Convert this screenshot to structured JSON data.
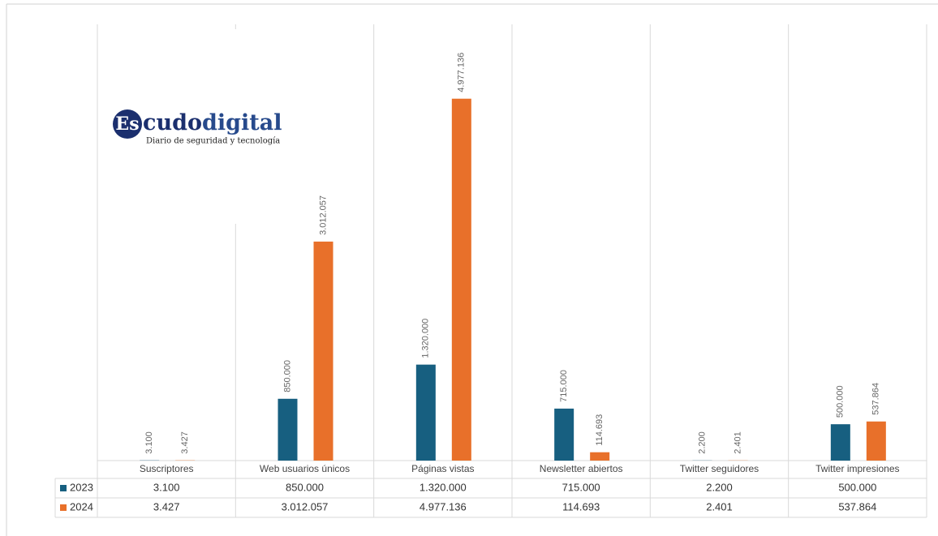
{
  "logo": {
    "mark": "Es",
    "name_part1": "cudo",
    "name_part2": "digital",
    "tagline": "Diario de seguridad y tecnología"
  },
  "chart_data": {
    "type": "bar",
    "categories": [
      "Suscriptores",
      "Web usuarios únicos",
      "Páginas vistas",
      "Newsletter abiertos",
      "Twitter seguidores",
      "Twitter impresiones"
    ],
    "series": [
      {
        "name": "2023",
        "color": "#175f80",
        "values": [
          3100,
          850000,
          1320000,
          715000,
          2200,
          500000
        ],
        "value_labels": [
          "3.100",
          "850.000",
          "1.320.000",
          "715.000",
          "2.200",
          "500.000"
        ]
      },
      {
        "name": "2024",
        "color": "#e8702a",
        "values": [
          3427,
          3012057,
          4977136,
          114693,
          2401,
          537864
        ],
        "value_labels": [
          "3.427",
          "3.012.057",
          "4.977.136",
          "114.693",
          "2.401",
          "537.864"
        ]
      }
    ],
    "ylim": [
      0,
      6000000
    ],
    "data_table": true
  }
}
